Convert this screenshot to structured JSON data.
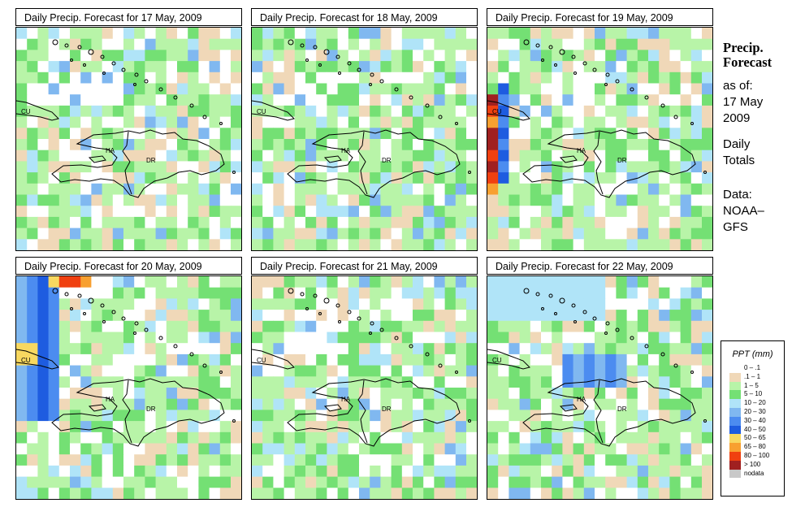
{
  "panels": [
    {
      "title": "Daily Precip. Forecast for  17 May, 2009",
      "seed": 17,
      "mode": "green"
    },
    {
      "title": "Daily Precip. Forecast for  18 May, 2009",
      "seed": 18,
      "mode": "green"
    },
    {
      "title": "Daily Precip. Forecast for  19 May, 2009",
      "seed": 19,
      "mode": "heavy-west"
    },
    {
      "title": "Daily Precip. Forecast for  20 May, 2009",
      "seed": 20,
      "mode": "blue-west"
    },
    {
      "title": "Daily Precip. Forecast for  21 May, 2009",
      "seed": 21,
      "mode": "green"
    },
    {
      "title": "Daily Precip. Forecast for  22 May, 2009",
      "seed": 22,
      "mode": "blue-north"
    }
  ],
  "map_labels": {
    "cuba": "CU",
    "haiti": "HA",
    "dominican_republic": "DR"
  },
  "sidebar": {
    "title_line1": "Precip.",
    "title_line2": "Forecast",
    "asof": "as of:",
    "date_line1": "17 May",
    "date_line2": "2009",
    "daily_line1": "Daily",
    "daily_line2": "Totals",
    "data_line1": "Data:",
    "data_line2": "NOAA–",
    "data_line3": "GFS"
  },
  "legend": {
    "title": "PPT (mm)",
    "items": [
      {
        "label": "0 – .1",
        "color": "#ffffff"
      },
      {
        "label": ".1 – 1",
        "color": "#f0d8b8"
      },
      {
        "label": "1 – 5",
        "color": "#b8f4a8"
      },
      {
        "label": "5 – 10",
        "color": "#74e074"
      },
      {
        "label": "10 – 20",
        "color": "#b0e4f8"
      },
      {
        "label": "20 – 30",
        "color": "#80b8f0"
      },
      {
        "label": "30 – 40",
        "color": "#4c8cf0"
      },
      {
        "label": "40 – 50",
        "color": "#1e5ce0"
      },
      {
        "label": "50 – 65",
        "color": "#f8d860"
      },
      {
        "label": "65 – 80",
        "color": "#f8a030"
      },
      {
        "label": "80 – 100",
        "color": "#f04010"
      },
      {
        "label": "> 100",
        "color": "#a02020"
      },
      {
        "label": "nodata",
        "color": "#c8c8c8"
      }
    ]
  }
}
